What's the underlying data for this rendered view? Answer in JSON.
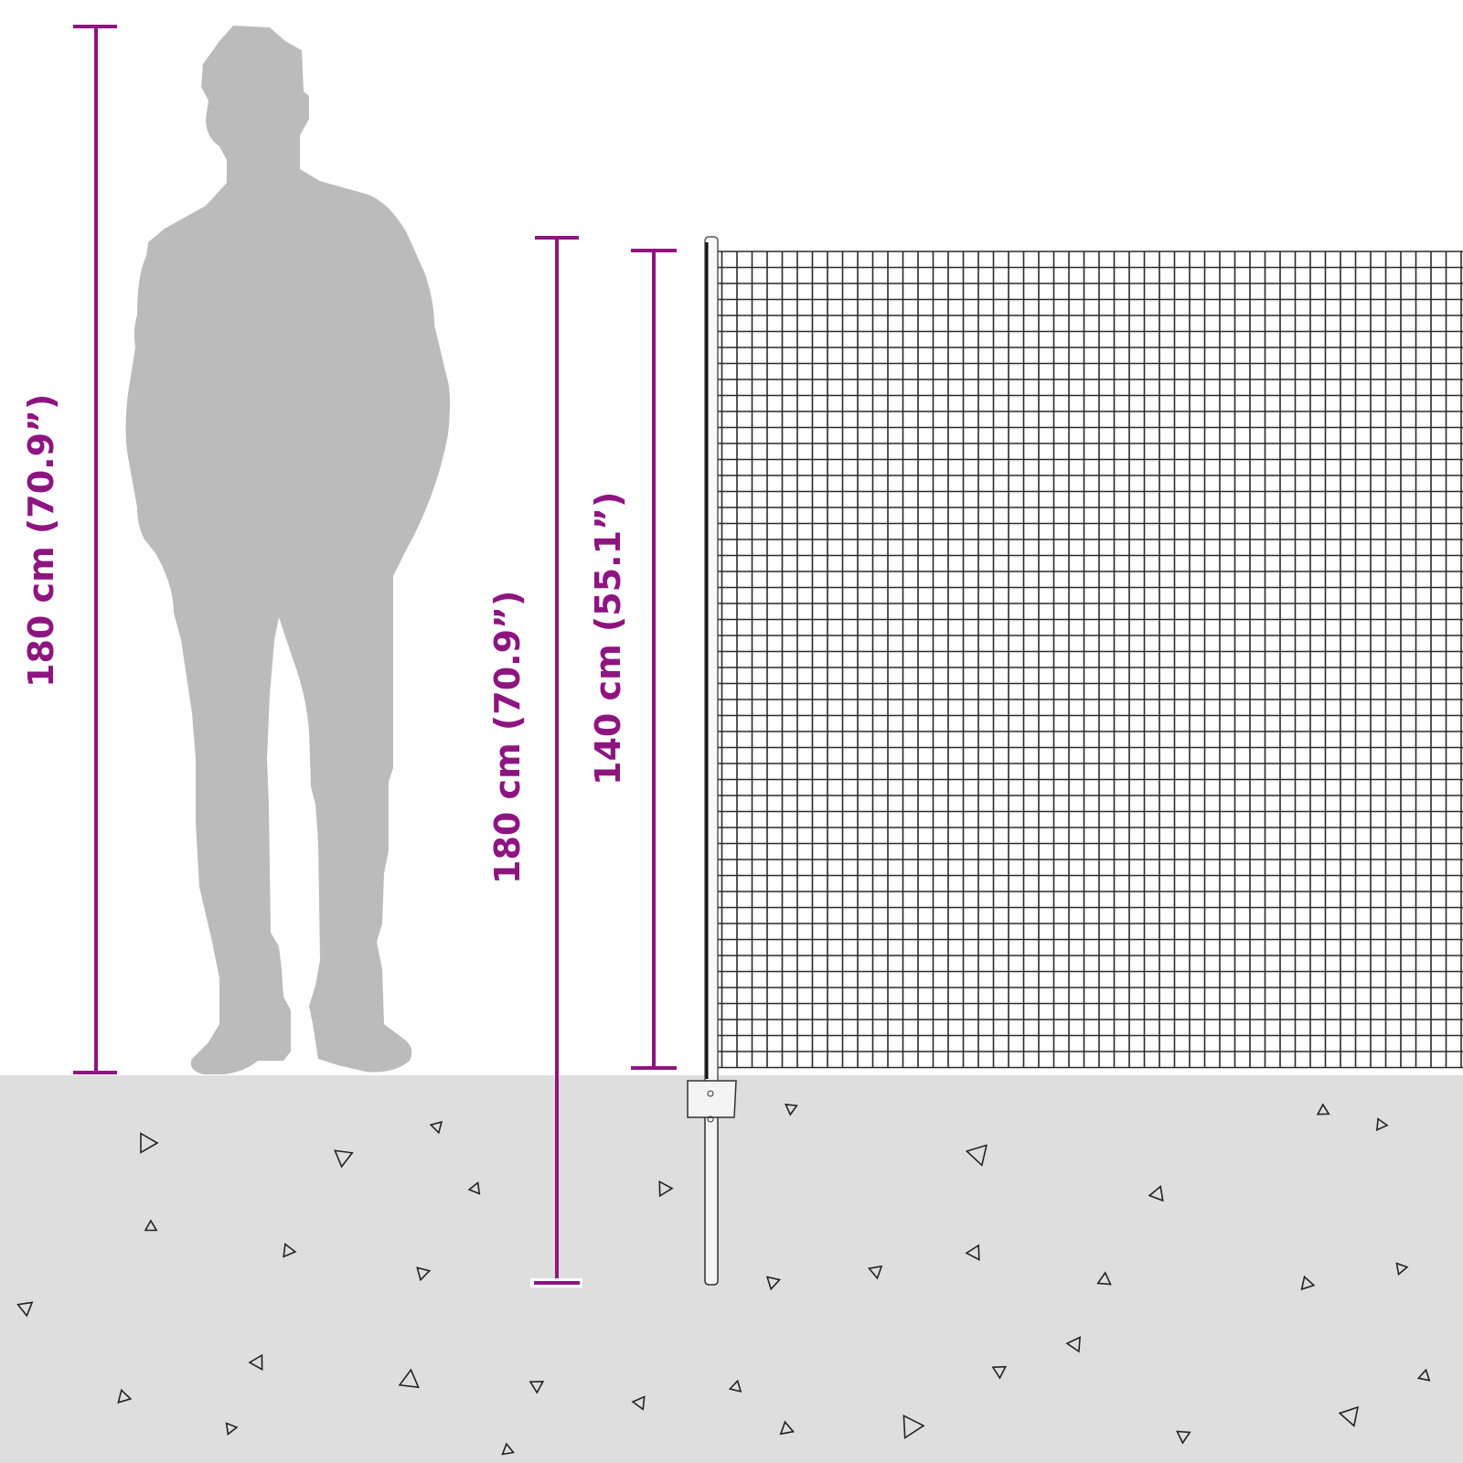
{
  "colors": {
    "dimension": "#8e1580",
    "ground": "#dedede",
    "silhouette": "#bbbbbb",
    "mesh": "#2a2a2a"
  },
  "dimensions": {
    "person_height": "180 cm (70.9”)",
    "post_height": "180 cm (70.9”)",
    "net_height": "140 cm (55.1”)"
  },
  "icons": [
    "person-silhouette",
    "fence-post",
    "mesh-net",
    "ground-pebbles"
  ]
}
